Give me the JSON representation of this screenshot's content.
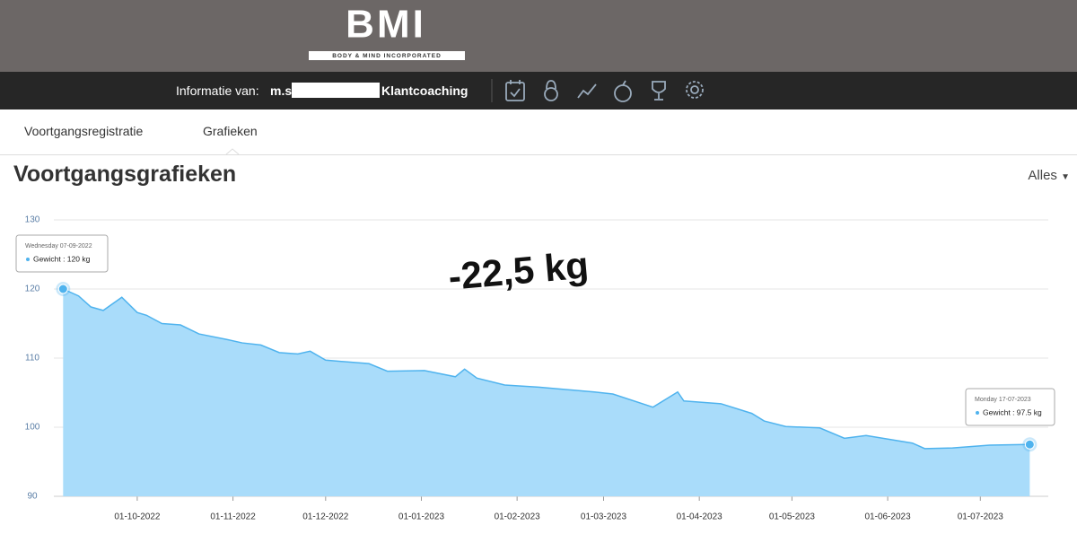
{
  "header": {
    "logo": "BMI",
    "logo_sub": "BODY & MIND INCORPORATED"
  },
  "nav": {
    "info_label": "Informatie van:",
    "user": "m.s",
    "link": "Klantcoaching"
  },
  "tabs": [
    "Voortgangsregistratie",
    "Grafieken"
  ],
  "page": {
    "title": "Voortgangsgrafieken",
    "filter": "Alles"
  },
  "chart_data": {
    "type": "area",
    "series": [
      {
        "name": "Gewicht",
        "color": "#4fb3ee",
        "fill": "#a9dcfa",
        "x": [
          "07-09-2022",
          "12-09-2022",
          "16-09-2022",
          "20-09-2022",
          "26-09-2022",
          "01-10-2022",
          "04-10-2022",
          "09-10-2022",
          "15-10-2022",
          "21-10-2022",
          "30-10-2022",
          "04-11-2022",
          "10-11-2022",
          "16-11-2022",
          "22-11-2022",
          "26-11-2022",
          "01-12-2022",
          "15-12-2022",
          "21-12-2022",
          "02-01-2023",
          "12-01-2023",
          "15-01-2023",
          "19-01-2023",
          "28-01-2023",
          "08-02-2023",
          "26-02-2023",
          "04-03-2023",
          "17-03-2023",
          "25-03-2023",
          "27-03-2023",
          "08-04-2023",
          "18-04-2023",
          "22-04-2023",
          "29-04-2023",
          "10-05-2023",
          "18-05-2023",
          "25-05-2023",
          "09-06-2023",
          "13-06-2023",
          "22-06-2023",
          "04-07-2023",
          "17-07-2023"
        ],
        "values": [
          120,
          119,
          117.4,
          116.9,
          118.8,
          116.6,
          116.2,
          115,
          114.8,
          113.5,
          112.7,
          112.2,
          111.9,
          110.8,
          110.6,
          111,
          109.7,
          109.2,
          108.1,
          108.2,
          107.3,
          108.4,
          107.1,
          106.1,
          105.8,
          105.1,
          104.8,
          102.9,
          105.1,
          103.8,
          103.4,
          102,
          100.9,
          100.1,
          99.9,
          98.4,
          98.8,
          97.7,
          96.9,
          97,
          97.4,
          97.5
        ]
      }
    ],
    "xlim": [
      "04-09-2022",
      "23-07-2023"
    ],
    "xticks": [
      "01-10-2022",
      "01-11-2022",
      "01-12-2022",
      "01-01-2023",
      "01-02-2023",
      "01-03-2023",
      "01-04-2023",
      "01-05-2023",
      "01-06-2023",
      "01-07-2023"
    ],
    "ylim": [
      90,
      130
    ],
    "yticks": [
      90,
      100,
      110,
      120,
      130
    ],
    "grid": true,
    "annotation": "-22,5 kg",
    "tooltips": [
      {
        "date": "Wednesday 07-09-2022",
        "label": "Gewicht : 120 kg"
      },
      {
        "date": "Monday 17-07-2023",
        "label": "Gewicht : 97.5 kg"
      }
    ]
  }
}
